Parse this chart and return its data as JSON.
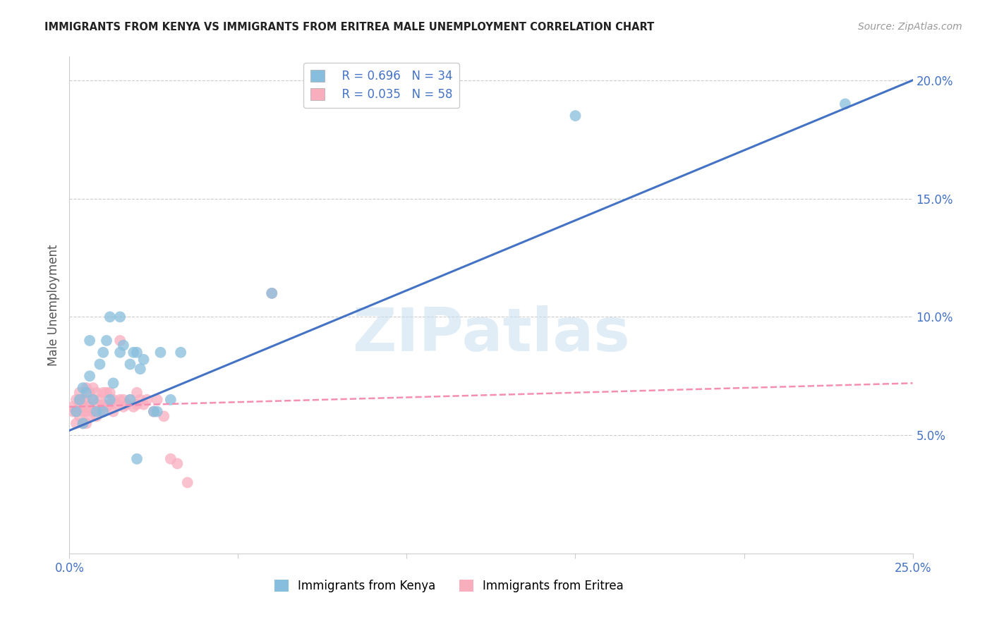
{
  "title": "IMMIGRANTS FROM KENYA VS IMMIGRANTS FROM ERITREA MALE UNEMPLOYMENT CORRELATION CHART",
  "source": "Source: ZipAtlas.com",
  "ylabel_left": "Male Unemployment",
  "watermark": "ZIPatlas",
  "legend1_label": "Immigrants from Kenya",
  "legend2_label": "Immigrants from Eritrea",
  "R1": 0.696,
  "N1": 34,
  "R2": 0.035,
  "N2": 58,
  "color_kenya": "#87BEDD",
  "color_eritrea": "#F9AEBE",
  "color_kenya_line": "#4472C4",
  "color_eritrea_line": "#F48FB1",
  "xmin": 0.0,
  "xmax": 0.25,
  "ymin": 0.0,
  "ymax": 0.21,
  "kenya_x": [
    0.002,
    0.003,
    0.004,
    0.005,
    0.006,
    0.007,
    0.009,
    0.01,
    0.011,
    0.012,
    0.013,
    0.015,
    0.016,
    0.018,
    0.019,
    0.02,
    0.021,
    0.022,
    0.025,
    0.026,
    0.027,
    0.03,
    0.033,
    0.06,
    0.15,
    0.23,
    0.004,
    0.006,
    0.008,
    0.01,
    0.012,
    0.015,
    0.018,
    0.02
  ],
  "kenya_y": [
    0.06,
    0.065,
    0.07,
    0.068,
    0.075,
    0.065,
    0.08,
    0.085,
    0.09,
    0.065,
    0.072,
    0.085,
    0.088,
    0.08,
    0.085,
    0.085,
    0.078,
    0.082,
    0.06,
    0.06,
    0.085,
    0.065,
    0.085,
    0.11,
    0.185,
    0.19,
    0.055,
    0.09,
    0.06,
    0.06,
    0.1,
    0.1,
    0.065,
    0.04
  ],
  "eritrea_x": [
    0.001,
    0.001,
    0.002,
    0.002,
    0.002,
    0.003,
    0.003,
    0.003,
    0.003,
    0.004,
    0.004,
    0.004,
    0.004,
    0.005,
    0.005,
    0.005,
    0.005,
    0.005,
    0.006,
    0.006,
    0.006,
    0.007,
    0.007,
    0.007,
    0.008,
    0.008,
    0.008,
    0.009,
    0.009,
    0.01,
    0.01,
    0.01,
    0.011,
    0.011,
    0.012,
    0.012,
    0.013,
    0.013,
    0.014,
    0.015,
    0.015,
    0.016,
    0.016,
    0.017,
    0.018,
    0.019,
    0.02,
    0.02,
    0.021,
    0.022,
    0.023,
    0.025,
    0.026,
    0.028,
    0.03,
    0.032,
    0.035,
    0.06
  ],
  "eritrea_y": [
    0.06,
    0.062,
    0.055,
    0.06,
    0.065,
    0.058,
    0.062,
    0.065,
    0.068,
    0.055,
    0.06,
    0.062,
    0.065,
    0.055,
    0.06,
    0.062,
    0.065,
    0.07,
    0.058,
    0.062,
    0.068,
    0.06,
    0.065,
    0.07,
    0.058,
    0.063,
    0.068,
    0.06,
    0.065,
    0.06,
    0.063,
    0.068,
    0.062,
    0.068,
    0.063,
    0.068,
    0.06,
    0.065,
    0.063,
    0.065,
    0.09,
    0.062,
    0.065,
    0.063,
    0.065,
    0.062,
    0.063,
    0.068,
    0.065,
    0.063,
    0.065,
    0.06,
    0.065,
    0.058,
    0.04,
    0.038,
    0.03,
    0.11
  ],
  "kenya_line_x0": 0.0,
  "kenya_line_y0": 0.052,
  "kenya_line_x1": 0.25,
  "kenya_line_y1": 0.2,
  "eritrea_line_x0": 0.0,
  "eritrea_line_y0": 0.062,
  "eritrea_line_x1": 0.25,
  "eritrea_line_y1": 0.072
}
